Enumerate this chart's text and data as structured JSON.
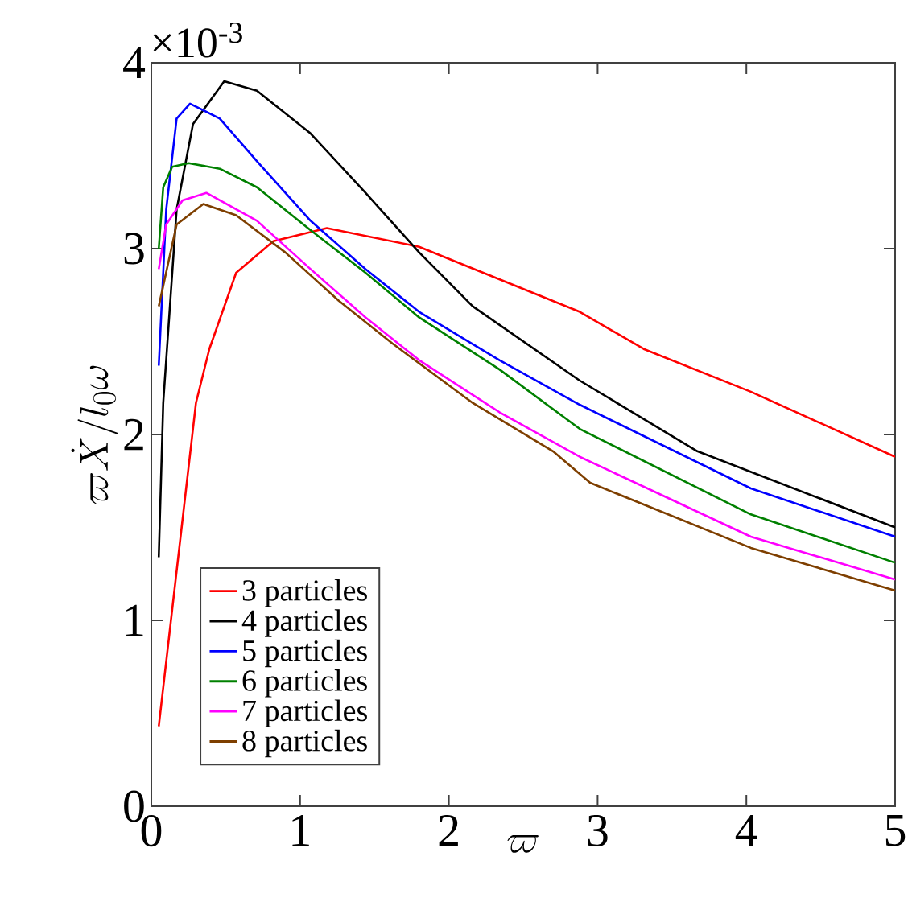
{
  "chart_data": {
    "type": "line",
    "xlabel": "\\varpi",
    "ylabel": "\\varpi\\dot{X}/l_0\\omega",
    "annotations": [
      "×10$^{-3}$"
    ],
    "xlim": [
      0,
      5
    ],
    "ylim": [
      0,
      4
    ],
    "xticks": [
      0,
      1,
      2,
      3,
      4,
      5
    ],
    "yticks": [
      0,
      1,
      2,
      3,
      4
    ],
    "legend": "bottom left",
    "series": [
      {
        "name": "3 particles",
        "color": "#ff0000",
        "x": [
          0.05,
          0.3,
          0.39,
          0.57,
          0.82,
          1.18,
          1.8,
          2.88,
          3.31,
          4.03,
          5.0
        ],
        "values": [
          0.43,
          2.17,
          2.46,
          2.87,
          3.04,
          3.11,
          3.01,
          2.66,
          2.46,
          2.23,
          1.88
        ]
      },
      {
        "name": "4 particles",
        "color": "#000000",
        "x": [
          0.05,
          0.08,
          0.17,
          0.28,
          0.49,
          0.71,
          1.07,
          1.44,
          1.8,
          2.16,
          2.88,
          3.67,
          5.0
        ],
        "values": [
          1.34,
          2.17,
          3.21,
          3.67,
          3.9,
          3.85,
          3.62,
          3.3,
          2.98,
          2.69,
          2.29,
          1.91,
          1.5
        ]
      },
      {
        "name": "5 particles",
        "color": "#0000ff",
        "x": [
          0.05,
          0.1,
          0.17,
          0.26,
          0.46,
          0.71,
          1.07,
          1.44,
          1.8,
          2.34,
          2.88,
          4.03,
          5.0
        ],
        "values": [
          2.37,
          3.21,
          3.7,
          3.78,
          3.7,
          3.47,
          3.15,
          2.89,
          2.66,
          2.4,
          2.16,
          1.71,
          1.45
        ]
      },
      {
        "name": "6 particles",
        "color": "#008000",
        "x": [
          0.05,
          0.08,
          0.14,
          0.25,
          0.46,
          0.71,
          1.07,
          1.44,
          1.8,
          2.34,
          2.88,
          4.03,
          5.0
        ],
        "values": [
          3.0,
          3.33,
          3.44,
          3.46,
          3.43,
          3.33,
          3.1,
          2.87,
          2.63,
          2.35,
          2.03,
          1.57,
          1.31
        ]
      },
      {
        "name": "7 particles",
        "color": "#ff00ff",
        "x": [
          0.05,
          0.1,
          0.21,
          0.37,
          0.71,
          1.07,
          1.44,
          1.8,
          2.34,
          2.88,
          4.03,
          5.0
        ],
        "values": [
          2.89,
          3.13,
          3.26,
          3.3,
          3.15,
          2.89,
          2.63,
          2.4,
          2.12,
          1.88,
          1.45,
          1.22
        ]
      },
      {
        "name": "8 particles",
        "color": "#7e3f00",
        "x": [
          0.05,
          0.17,
          0.35,
          0.57,
          0.9,
          1.26,
          1.62,
          2.16,
          2.7,
          2.95,
          4.03,
          5.0
        ],
        "values": [
          2.69,
          3.13,
          3.24,
          3.18,
          2.98,
          2.72,
          2.49,
          2.17,
          1.91,
          1.74,
          1.39,
          1.16
        ]
      }
    ]
  }
}
